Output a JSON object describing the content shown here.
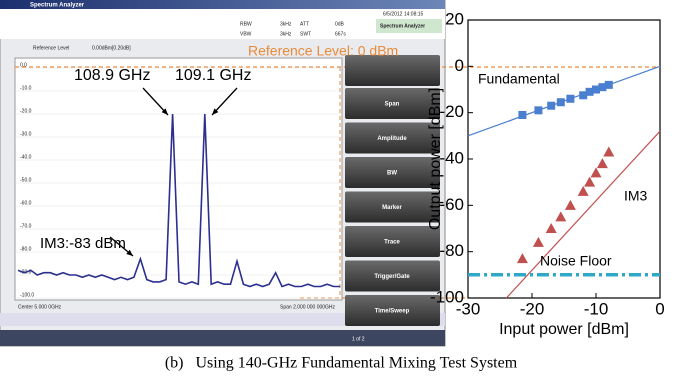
{
  "analyzer": {
    "title": "Spectrum Analyzer",
    "mode": "Spectrum Analyzer",
    "datetime": "6/5/2012 14:08:15",
    "params": [
      "RBW",
      "3kHz",
      "ATT",
      "0dB",
      "VBW",
      "3kHz",
      "SWT",
      "667s"
    ],
    "reference_label": "Reference Level",
    "reference_value": "0.00dBm[0.20dB]",
    "softkeys": [
      "Span",
      "Amplitude",
      "BW",
      "Marker",
      "Trace",
      "Trigger/Gate",
      "Time/Sweep"
    ],
    "center": "Center 5.000 0GHz",
    "span": "Span 2.000 000 000GHz",
    "page": "1 of 2"
  },
  "chart_data": [
    {
      "type": "line",
      "color": "#2b2f8f",
      "values": [
        -88,
        -89,
        -88,
        -90,
        -89,
        -89,
        -90,
        -89,
        -90,
        -90,
        -91,
        -90,
        -91,
        -90,
        -91,
        -92,
        -91,
        -92,
        -91,
        -83,
        -92,
        -93,
        -93,
        -92,
        -20,
        -93,
        -94,
        -93,
        -94,
        -20,
        -94,
        -93,
        -94,
        -94,
        -84,
        -94,
        -95,
        -94,
        -95,
        -94,
        -89,
        -95,
        -94,
        -95,
        -95,
        -94,
        -95,
        -95,
        -94,
        -95,
        -95
      ],
      "ylim": [
        -100,
        0
      ],
      "yticks": [
        {
          "value": 0,
          "label": "0.0"
        },
        {
          "value": -10,
          "label": "-10.0"
        },
        {
          "value": -20,
          "label": "-20.0"
        },
        {
          "value": -30,
          "label": "-30.0"
        },
        {
          "value": -40,
          "label": "-40.0"
        },
        {
          "value": -50,
          "label": "-50.0"
        },
        {
          "value": -60,
          "label": "-60.0"
        },
        {
          "value": -70,
          "label": "-70.0"
        },
        {
          "value": -80,
          "label": "-80.0"
        },
        {
          "value": -90,
          "label": "-90.0"
        },
        {
          "value": -100,
          "label": "-100.0"
        }
      ],
      "grid": true,
      "annotations": [
        "108.9 GHz",
        "109.1 GHz",
        "IM3:-83 dBm",
        "Reference Level: 0 dBm"
      ]
    },
    {
      "type": "scatter",
      "xlabel": "Input power [dBm]",
      "ylabel": "Output power [dBm]",
      "xlim": [
        -30,
        0
      ],
      "ylim": [
        -100,
        20
      ],
      "xticks": [
        -30,
        -20,
        -10,
        0
      ],
      "yticks": [
        -100,
        -80,
        -60,
        -40,
        -20,
        0,
        20
      ],
      "series": [
        {
          "name": "Fundamental",
          "color": "#4a7fd0",
          "marker": "square",
          "x": [
            -21.5,
            -19,
            -17,
            -15.5,
            -14,
            -12,
            -11,
            -10,
            -9,
            -8
          ],
          "values": [
            -21,
            -19,
            -17,
            -15.5,
            -14,
            -12.5,
            -11,
            -10,
            -9,
            -8
          ],
          "fit": {
            "color": "#4a7fd0",
            "x": [
              -30,
              0
            ],
            "values": [
              -30,
              0
            ]
          }
        },
        {
          "name": "IM3",
          "color": "#c0504d",
          "marker": "triangle",
          "x": [
            -21.5,
            -19,
            -17,
            -15.5,
            -14,
            -12,
            -11,
            -10,
            -9,
            -8
          ],
          "values": [
            -83,
            -76,
            -70,
            -65,
            -60,
            -54,
            -50,
            -46,
            -42,
            -37
          ],
          "fit": {
            "color": "#c0504d",
            "x": [
              -24,
              0
            ],
            "values": [
              -100,
              -28
            ]
          }
        },
        {
          "name": "Noise Floor",
          "color": "#2fa8c8",
          "style": "dashdot",
          "x": [
            -30,
            0
          ],
          "values": [
            -90,
            -90
          ]
        }
      ]
    }
  ],
  "caption": "(b)   Using 140-GHz Fundamental Mixing Test System"
}
